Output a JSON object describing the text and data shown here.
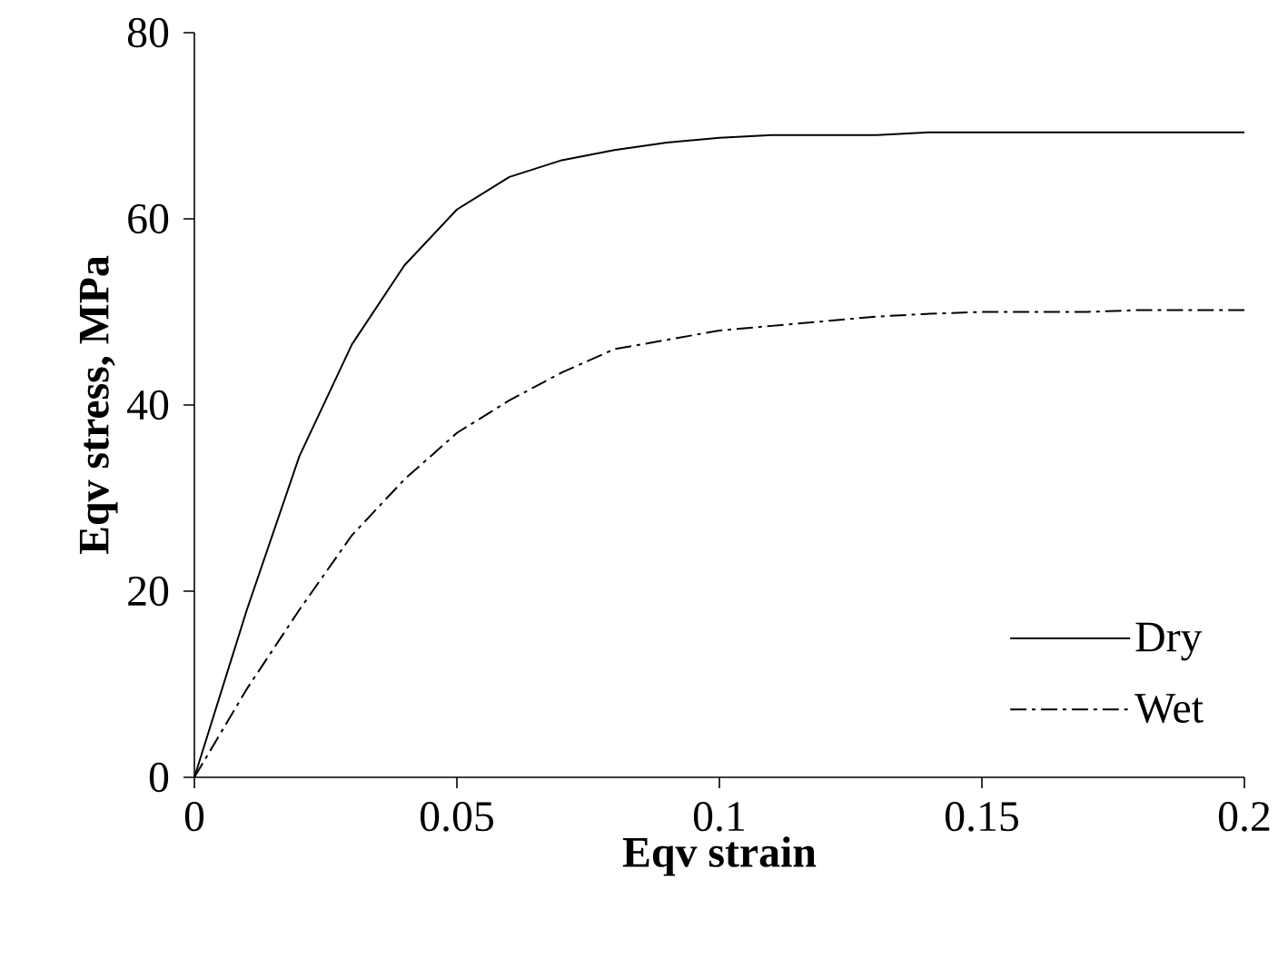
{
  "chart_data": {
    "type": "line",
    "xlabel": "Eqv strain",
    "ylabel": "Eqv stress, MPa",
    "xlim": [
      0,
      0.2
    ],
    "ylim": [
      0,
      80
    ],
    "xticks": [
      0,
      0.05,
      0.1,
      0.15,
      0.2
    ],
    "yticks": [
      0,
      20,
      40,
      60,
      80
    ],
    "legend": "bottom right",
    "marker": "none",
    "grid": false,
    "x": [
      0,
      0.01,
      0.02,
      0.03,
      0.04,
      0.05,
      0.06,
      0.07,
      0.08,
      0.09,
      0.1,
      0.11,
      0.12,
      0.13,
      0.14,
      0.15,
      0.16,
      0.17,
      0.18,
      0.19,
      0.2
    ],
    "series": [
      {
        "name": "Dry",
        "color": "#000000",
        "line_style": "solid",
        "values": [
          0,
          18,
          34.5,
          46.5,
          55,
          61,
          64.5,
          66.3,
          67.4,
          68.2,
          68.7,
          69,
          69,
          69,
          69.3,
          69.3,
          69.3,
          69.3,
          69.3,
          69.3,
          69.3
        ]
      },
      {
        "name": "Wet",
        "color": "#000000",
        "line_style": "dashdot",
        "values": [
          0,
          9.5,
          18,
          26,
          32,
          37,
          40.5,
          43.5,
          46,
          47,
          48,
          48.5,
          49,
          49.5,
          49.8,
          50,
          50,
          50,
          50.2,
          50.2,
          50.2
        ]
      }
    ]
  }
}
